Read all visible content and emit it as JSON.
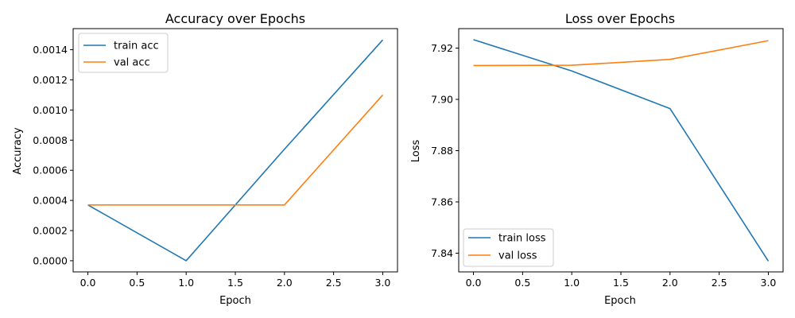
{
  "chart_data": [
    {
      "type": "line",
      "title": "Accuracy over Epochs",
      "xlabel": "Epoch",
      "ylabel": "Accuracy",
      "x": [
        0,
        1,
        2,
        3
      ],
      "xlim": [
        -0.15,
        3.15
      ],
      "ylim": [
        -7.42e-05,
        0.00154
      ],
      "xticks": [
        0.0,
        0.5,
        1.0,
        1.5,
        2.0,
        2.5,
        3.0
      ],
      "xtick_labels": [
        "0.0",
        "0.5",
        "1.0",
        "1.5",
        "2.0",
        "2.5",
        "3.0"
      ],
      "yticks": [
        0,
        0.0002,
        0.0004,
        0.0006,
        0.0008,
        0.001,
        0.0012,
        0.0014
      ],
      "ytick_labels": [
        "0.0000",
        "0.0002",
        "0.0004",
        "0.0006",
        "0.0008",
        "0.0010",
        "0.0012",
        "0.0014"
      ],
      "legend_position": "top-left",
      "grid": false,
      "series": [
        {
          "name": "train acc",
          "color": "#1f77b4",
          "values": [
            0.00037,
            0.0,
            0.00074,
            0.001465
          ]
        },
        {
          "name": "val acc",
          "color": "#ff7f0e",
          "values": [
            0.00037,
            0.00037,
            0.00037,
            0.0011
          ]
        }
      ]
    },
    {
      "type": "line",
      "title": "Loss over Epochs",
      "xlabel": "Epoch",
      "ylabel": "Loss",
      "x": [
        0,
        1,
        2,
        3
      ],
      "xlim": [
        -0.15,
        3.15
      ],
      "ylim": [
        7.8327,
        7.9276
      ],
      "xticks": [
        0.0,
        0.5,
        1.0,
        1.5,
        2.0,
        2.5,
        3.0
      ],
      "xtick_labels": [
        "0.0",
        "0.5",
        "1.0",
        "1.5",
        "2.0",
        "2.5",
        "3.0"
      ],
      "yticks": [
        7.84,
        7.86,
        7.88,
        7.9,
        7.92
      ],
      "ytick_labels": [
        "7.84",
        "7.86",
        "7.88",
        "7.90",
        "7.92"
      ],
      "legend_position": "bottom-left",
      "grid": false,
      "series": [
        {
          "name": "train loss",
          "color": "#1f77b4",
          "values": [
            7.9233,
            7.9111,
            7.8964,
            7.8369
          ]
        },
        {
          "name": "val loss",
          "color": "#ff7f0e",
          "values": [
            7.9132,
            7.9133,
            7.9156,
            7.9229
          ]
        }
      ]
    }
  ]
}
